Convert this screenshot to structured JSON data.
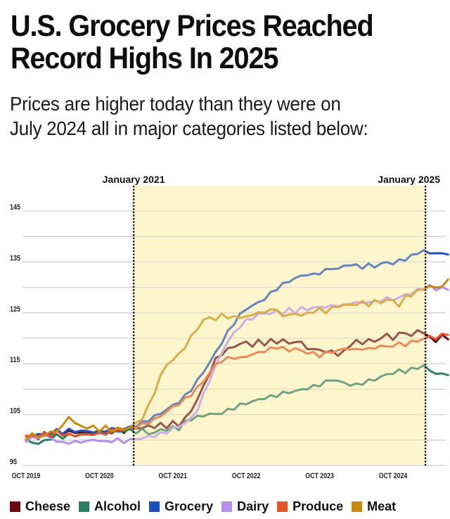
{
  "header": {
    "title_line1": "U.S. Grocery Prices Reached",
    "title_line2": "Record Highs In 2025",
    "subtitle_line1": "Prices are higher today than they were on",
    "subtitle_line2": "July 2024 all in major categories listed below:"
  },
  "chart_data": {
    "type": "line",
    "title": "U.S. Grocery Prices Reached Record Highs In 2025",
    "subtitle": "Prices are higher today than they were on July 2024 all in major categories listed below:",
    "xlabel": "",
    "ylabel": "",
    "x_unit": "months since Oct 2019",
    "xlim": [
      0,
      69
    ],
    "ylim": [
      95,
      145
    ],
    "yticks": [
      95,
      105,
      115,
      125,
      135,
      145
    ],
    "ytick_labels": [
      "95",
      "105",
      "115",
      "125",
      "135",
      "145"
    ],
    "gridlines_every": 5,
    "grid": true,
    "xticks": [
      0,
      12,
      24,
      36,
      48,
      60
    ],
    "xtick_labels": [
      "OCT 2019",
      "OCT 2020",
      "OCT 2021",
      "OCT 2022",
      "OCT 2023",
      "OCT 2024"
    ],
    "markers": [
      {
        "label": "January 2021",
        "x": 17.6
      },
      {
        "label": "January 2025",
        "x": 65.3
      }
    ],
    "shaded_region": {
      "from": 17.6,
      "to": 65.3,
      "color": "#fdf6cf"
    },
    "legend_position": "bottom",
    "x": [
      0,
      1,
      2,
      3,
      4,
      5,
      6,
      7,
      8,
      9,
      10,
      11,
      12,
      13,
      14,
      15,
      16,
      17,
      18,
      19,
      20,
      21,
      22,
      23,
      24,
      25,
      26,
      27,
      28,
      29,
      30,
      31,
      32,
      33,
      34,
      35,
      36,
      37,
      38,
      39,
      40,
      41,
      42,
      43,
      44,
      45,
      46,
      47,
      48,
      49,
      50,
      51,
      52,
      53,
      54,
      55,
      56,
      57,
      58,
      59,
      60,
      61,
      62,
      63,
      64,
      65,
      66,
      67,
      68,
      69
    ],
    "series": [
      {
        "name": "Cheese",
        "color": "#6b0a12",
        "values": [
          100.2,
          100.8,
          100.5,
          101.2,
          100.9,
          101.6,
          101.3,
          101.9,
          101.2,
          101.8,
          101.0,
          101.6,
          101.2,
          101.8,
          101.4,
          102.0,
          101.7,
          102.2,
          102.6,
          102.1,
          103.0,
          102.4,
          103.2,
          102.6,
          103.4,
          103.0,
          104.2,
          105.8,
          108.0,
          110.5,
          113.2,
          115.8,
          117.0,
          117.8,
          118.4,
          118.9,
          119.2,
          118.6,
          119.4,
          118.9,
          119.6,
          119.1,
          119.8,
          118.8,
          119.5,
          119.0,
          118.2,
          117.6,
          117.9,
          117.2,
          117.5,
          116.8,
          117.3,
          118.8,
          119.4,
          119.0,
          119.8,
          119.2,
          120.2,
          120.6,
          120.0,
          120.8,
          121.2,
          120.4,
          121.5,
          121.2,
          120.0,
          119.6,
          120.4,
          120.0
        ]
      },
      {
        "name": "Alcohol",
        "color": "#2e7d62",
        "values": [
          99.9,
          99.6,
          99.3,
          99.8,
          100.4,
          100.8,
          100.6,
          101.0,
          100.9,
          101.2,
          101.0,
          101.3,
          101.1,
          101.4,
          101.6,
          101.8,
          101.7,
          102.0,
          101.6,
          101.9,
          101.5,
          101.2,
          102.3,
          101.8,
          102.6,
          102.2,
          103.5,
          104.2,
          104.5,
          104.8,
          105.2,
          105.0,
          105.4,
          105.8,
          106.3,
          106.9,
          107.2,
          107.6,
          107.9,
          108.3,
          108.5,
          108.8,
          109.2,
          109.4,
          109.6,
          109.9,
          110.2,
          110.5,
          110.9,
          111.4,
          111.9,
          111.6,
          111.2,
          110.9,
          110.8,
          111.2,
          111.6,
          111.9,
          112.4,
          112.9,
          113.2,
          113.6,
          113.5,
          113.9,
          114.2,
          114.6,
          113.6,
          113.2,
          112.8,
          113.1
        ]
      },
      {
        "name": "Grocery",
        "color": "#1f4fb8",
        "values": [
          100.5,
          100.9,
          101.2,
          101.0,
          101.4,
          101.8,
          101.5,
          102.0,
          101.7,
          101.9,
          101.6,
          101.8,
          101.5,
          101.9,
          102.1,
          102.3,
          102.2,
          102.5,
          102.9,
          103.4,
          104.0,
          104.6,
          105.3,
          106.0,
          106.8,
          107.6,
          108.6,
          110.0,
          111.6,
          113.4,
          115.2,
          117.2,
          119.2,
          121.2,
          123.0,
          124.6,
          125.8,
          126.4,
          127.0,
          127.8,
          128.8,
          129.8,
          130.6,
          131.2,
          131.8,
          132.2,
          132.6,
          132.4,
          132.9,
          133.3,
          133.8,
          133.6,
          134.2,
          134.5,
          134.2,
          134.0,
          134.4,
          134.1,
          134.6,
          134.9,
          134.7,
          135.2,
          135.6,
          136.1,
          136.8,
          137.2,
          136.6,
          136.9,
          136.4,
          136.8
        ]
      },
      {
        "name": "Dairy",
        "color": "#b48ff0",
        "values": [
          100.0,
          100.3,
          100.6,
          100.8,
          100.5,
          99.8,
          99.4,
          99.6,
          99.5,
          99.8,
          99.7,
          100.1,
          99.9,
          99.6,
          99.9,
          100.0,
          99.7,
          100.0,
          100.2,
          100.4,
          100.6,
          100.9,
          101.2,
          101.6,
          102.2,
          102.7,
          103.4,
          104.2,
          106.0,
          108.8,
          111.8,
          114.6,
          117.2,
          119.4,
          121.0,
          122.4,
          123.4,
          124.0,
          124.6,
          125.0,
          124.8,
          125.3,
          125.0,
          125.6,
          125.2,
          125.9,
          125.6,
          126.1,
          126.0,
          126.3,
          126.2,
          126.6,
          126.4,
          126.9,
          127.1,
          126.8,
          127.3,
          127.0,
          127.5,
          127.8,
          127.6,
          128.0,
          128.5,
          128.9,
          129.4,
          129.8,
          130.2,
          129.6,
          130.0,
          129.4
        ]
      },
      {
        "name": "Produce",
        "color": "#e0582a",
        "values": [
          100.6,
          101.0,
          100.7,
          101.2,
          101.0,
          101.5,
          101.2,
          101.0,
          100.8,
          101.1,
          100.9,
          101.3,
          101.1,
          101.5,
          101.8,
          102.1,
          102.0,
          102.3,
          102.6,
          103.0,
          103.5,
          104.0,
          104.8,
          105.6,
          106.5,
          107.2,
          108.0,
          109.0,
          110.2,
          111.6,
          113.2,
          114.8,
          115.6,
          116.0,
          116.3,
          116.0,
          116.5,
          116.8,
          117.2,
          117.5,
          117.9,
          118.3,
          118.0,
          117.6,
          118.0,
          117.5,
          117.2,
          117.0,
          116.6,
          117.1,
          117.3,
          117.6,
          117.9,
          118.0,
          117.6,
          118.1,
          117.8,
          118.2,
          118.5,
          118.3,
          118.6,
          118.9,
          118.8,
          119.2,
          119.6,
          119.8,
          120.4,
          120.0,
          120.6,
          121.0
        ]
      },
      {
        "name": "Meat",
        "color": "#c98a12",
        "values": [
          100.4,
          101.2,
          100.5,
          101.0,
          101.4,
          102.0,
          102.6,
          104.8,
          103.2,
          102.8,
          102.4,
          102.6,
          102.0,
          102.5,
          101.8,
          102.3,
          102.1,
          102.6,
          103.2,
          104.4,
          106.6,
          109.4,
          112.6,
          114.8,
          115.8,
          116.8,
          118.4,
          120.2,
          122.0,
          123.4,
          124.2,
          123.6,
          124.6,
          124.2,
          124.0,
          124.3,
          124.1,
          124.6,
          125.2,
          124.8,
          126.0,
          125.2,
          124.6,
          124.4,
          124.9,
          124.5,
          124.8,
          125.3,
          125.6,
          125.2,
          125.9,
          126.2,
          126.6,
          126.4,
          126.8,
          127.0,
          126.6,
          127.3,
          127.0,
          127.6,
          127.3,
          126.5,
          128.0,
          128.6,
          129.2,
          129.8,
          130.3,
          129.8,
          130.4,
          131.2
        ]
      }
    ]
  }
}
